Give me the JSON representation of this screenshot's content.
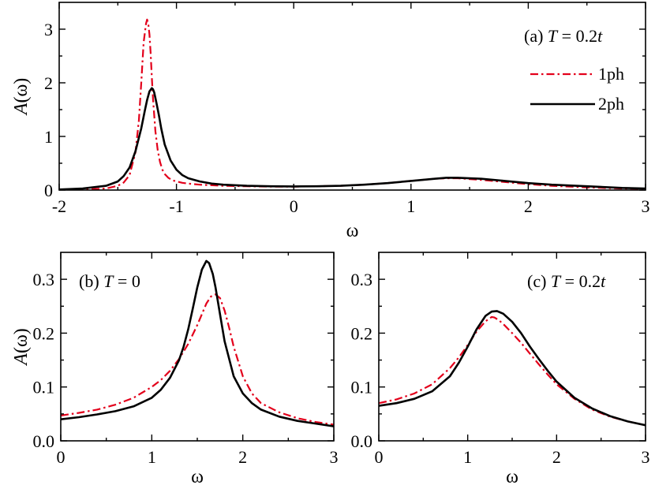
{
  "colors": {
    "one_ph": "#e3001b",
    "two_ph": "#000000"
  },
  "chart_data": [
    {
      "type": "line",
      "panel": "a",
      "panel_label": "(a) T = 0.2t",
      "panel_label_prefix": "(a) ",
      "panel_label_var": "T",
      "panel_label_eq": " = 0.2",
      "panel_label_unit": "t",
      "xlabel": "ω",
      "ylabel": "A(ω)",
      "ylabel_var": "A",
      "ylabel_arg": "(ω)",
      "xlim": [
        -2,
        3
      ],
      "ylim": [
        0,
        3.5
      ],
      "xticks": [
        -2,
        -1,
        0,
        1,
        2,
        3
      ],
      "xtick_labels": [
        "-2",
        "-1",
        "0",
        "1",
        "2",
        "3"
      ],
      "yticks": [
        0,
        1,
        2,
        3
      ],
      "ytick_labels": [
        "0",
        "1",
        "2",
        "3"
      ],
      "legend": {
        "placement": "right",
        "entries": [
          "1ph",
          "2ph"
        ]
      },
      "series": [
        {
          "name": "1ph",
          "style": "dash-dot",
          "color": "#e3001b",
          "x": [
            -2.0,
            -1.8,
            -1.6,
            -1.5,
            -1.45,
            -1.4,
            -1.35,
            -1.32,
            -1.3,
            -1.28,
            -1.26,
            -1.25,
            -1.24,
            -1.23,
            -1.22,
            -1.21,
            -1.2,
            -1.18,
            -1.16,
            -1.14,
            -1.12,
            -1.1,
            -1.07,
            -1.03,
            -1.0,
            -0.95,
            -0.9,
            -0.8,
            -0.6,
            -0.4,
            -0.2,
            0.0,
            0.2,
            0.4,
            0.6,
            0.8,
            1.0,
            1.2,
            1.3,
            1.4,
            1.6,
            1.8,
            2.0,
            2.2,
            2.5,
            2.8,
            3.0
          ],
          "y": [
            0.004,
            0.01,
            0.03,
            0.08,
            0.14,
            0.28,
            0.7,
            1.3,
            2.0,
            2.75,
            3.1,
            3.18,
            3.1,
            2.9,
            2.55,
            2.1,
            1.7,
            1.1,
            0.75,
            0.52,
            0.38,
            0.3,
            0.23,
            0.18,
            0.16,
            0.135,
            0.12,
            0.1,
            0.08,
            0.07,
            0.065,
            0.065,
            0.07,
            0.08,
            0.1,
            0.13,
            0.17,
            0.21,
            0.22,
            0.22,
            0.19,
            0.15,
            0.11,
            0.08,
            0.05,
            0.03,
            0.02
          ]
        },
        {
          "name": "2ph",
          "style": "solid",
          "color": "#000000",
          "x": [
            -2.0,
            -1.8,
            -1.6,
            -1.5,
            -1.45,
            -1.4,
            -1.35,
            -1.3,
            -1.27,
            -1.25,
            -1.23,
            -1.21,
            -1.2,
            -1.19,
            -1.17,
            -1.15,
            -1.13,
            -1.1,
            -1.05,
            -1.0,
            -0.95,
            -0.9,
            -0.8,
            -0.7,
            -0.6,
            -0.4,
            -0.2,
            0.0,
            0.2,
            0.4,
            0.6,
            0.8,
            1.0,
            1.2,
            1.3,
            1.4,
            1.6,
            1.8,
            2.0,
            2.2,
            2.5,
            2.8,
            3.0
          ],
          "y": [
            0.01,
            0.03,
            0.08,
            0.16,
            0.26,
            0.42,
            0.72,
            1.15,
            1.48,
            1.68,
            1.84,
            1.9,
            1.88,
            1.82,
            1.62,
            1.4,
            1.15,
            0.85,
            0.55,
            0.38,
            0.28,
            0.22,
            0.16,
            0.12,
            0.1,
            0.08,
            0.07,
            0.068,
            0.07,
            0.08,
            0.1,
            0.13,
            0.17,
            0.21,
            0.23,
            0.23,
            0.21,
            0.17,
            0.13,
            0.1,
            0.07,
            0.04,
            0.03
          ]
        }
      ]
    },
    {
      "type": "line",
      "panel": "b",
      "panel_label": "(b) T = 0",
      "panel_label_prefix": "(b) ",
      "panel_label_var": "T",
      "panel_label_eq": " = 0",
      "panel_label_unit": "",
      "xlabel": "ω",
      "ylabel": "A(ω)",
      "ylabel_var": "A",
      "ylabel_arg": "(ω)",
      "xlim": [
        0,
        3
      ],
      "ylim": [
        0,
        0.35
      ],
      "xticks": [
        0,
        1,
        2,
        3
      ],
      "xtick_labels": [
        "0",
        "1",
        "2",
        "3"
      ],
      "yticks": [
        0,
        0.1,
        0.2,
        0.3
      ],
      "ytick_labels": [
        "0.0",
        "0.1",
        "0.2",
        "0.3"
      ],
      "series": [
        {
          "name": "1ph",
          "style": "dash-dot",
          "color": "#e3001b",
          "x": [
            0.0,
            0.2,
            0.4,
            0.6,
            0.8,
            1.0,
            1.1,
            1.2,
            1.3,
            1.4,
            1.5,
            1.55,
            1.6,
            1.65,
            1.7,
            1.75,
            1.8,
            1.85,
            1.9,
            2.0,
            2.1,
            2.2,
            2.4,
            2.6,
            2.8,
            3.0
          ],
          "y": [
            0.047,
            0.052,
            0.058,
            0.067,
            0.08,
            0.1,
            0.113,
            0.13,
            0.152,
            0.18,
            0.215,
            0.235,
            0.255,
            0.268,
            0.272,
            0.265,
            0.242,
            0.21,
            0.175,
            0.12,
            0.088,
            0.07,
            0.053,
            0.042,
            0.035,
            0.03
          ]
        },
        {
          "name": "2ph",
          "style": "solid",
          "color": "#000000",
          "x": [
            0.0,
            0.2,
            0.4,
            0.6,
            0.8,
            1.0,
            1.1,
            1.2,
            1.3,
            1.35,
            1.4,
            1.45,
            1.5,
            1.55,
            1.6,
            1.63,
            1.67,
            1.7,
            1.75,
            1.8,
            1.9,
            2.0,
            2.1,
            2.2,
            2.4,
            2.6,
            2.8,
            3.0
          ],
          "y": [
            0.04,
            0.044,
            0.049,
            0.055,
            0.064,
            0.08,
            0.095,
            0.117,
            0.15,
            0.175,
            0.207,
            0.245,
            0.285,
            0.318,
            0.334,
            0.33,
            0.31,
            0.285,
            0.235,
            0.185,
            0.12,
            0.088,
            0.07,
            0.058,
            0.045,
            0.037,
            0.032,
            0.027
          ]
        }
      ]
    },
    {
      "type": "line",
      "panel": "c",
      "panel_label": "(c) T = 0.2t",
      "panel_label_prefix": "(c) ",
      "panel_label_var": "T",
      "panel_label_eq": " = 0.2",
      "panel_label_unit": "t",
      "xlabel": "ω",
      "ylabel": "",
      "xlim": [
        0,
        3
      ],
      "ylim": [
        0,
        0.35
      ],
      "xticks": [
        0,
        1,
        2,
        3
      ],
      "xtick_labels": [
        "0",
        "1",
        "2",
        "3"
      ],
      "yticks": [
        0,
        0.1,
        0.2,
        0.3
      ],
      "ytick_labels": [
        "0.0",
        "0.1",
        "0.2",
        "0.3"
      ],
      "series": [
        {
          "name": "1ph",
          "style": "dash-dot",
          "color": "#e3001b",
          "x": [
            0.0,
            0.2,
            0.4,
            0.6,
            0.8,
            0.9,
            1.0,
            1.1,
            1.2,
            1.27,
            1.3,
            1.35,
            1.4,
            1.5,
            1.6,
            1.7,
            1.8,
            1.9,
            2.0,
            2.2,
            2.4,
            2.6,
            2.8,
            3.0
          ],
          "y": [
            0.07,
            0.077,
            0.088,
            0.105,
            0.135,
            0.155,
            0.178,
            0.203,
            0.222,
            0.23,
            0.229,
            0.224,
            0.217,
            0.2,
            0.182,
            0.162,
            0.142,
            0.123,
            0.105,
            0.078,
            0.058,
            0.045,
            0.036,
            0.029
          ]
        },
        {
          "name": "2ph",
          "style": "solid",
          "color": "#000000",
          "x": [
            0.0,
            0.2,
            0.4,
            0.6,
            0.8,
            0.9,
            1.0,
            1.1,
            1.2,
            1.27,
            1.33,
            1.4,
            1.5,
            1.6,
            1.7,
            1.8,
            1.9,
            2.0,
            2.2,
            2.4,
            2.6,
            2.8,
            3.0
          ],
          "y": [
            0.065,
            0.07,
            0.078,
            0.092,
            0.12,
            0.145,
            0.175,
            0.207,
            0.232,
            0.24,
            0.241,
            0.236,
            0.221,
            0.2,
            0.175,
            0.152,
            0.13,
            0.11,
            0.08,
            0.06,
            0.046,
            0.036,
            0.029
          ]
        }
      ]
    }
  ]
}
